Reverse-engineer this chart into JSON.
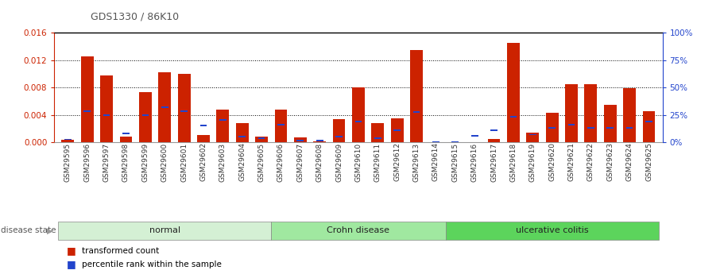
{
  "title": "GDS1330 / 86K10",
  "samples": [
    "GSM29595",
    "GSM29596",
    "GSM29597",
    "GSM29598",
    "GSM29599",
    "GSM29600",
    "GSM29601",
    "GSM29602",
    "GSM29603",
    "GSM29604",
    "GSM29605",
    "GSM29606",
    "GSM29607",
    "GSM29608",
    "GSM29609",
    "GSM29610",
    "GSM29611",
    "GSM29612",
    "GSM29613",
    "GSM29614",
    "GSM29615",
    "GSM29616",
    "GSM29617",
    "GSM29618",
    "GSM29619",
    "GSM29620",
    "GSM29621",
    "GSM29622",
    "GSM29623",
    "GSM29624",
    "GSM29625"
  ],
  "red_values": [
    0.00045,
    0.01255,
    0.00975,
    0.00085,
    0.0073,
    0.0102,
    0.01005,
    0.0011,
    0.0048,
    0.00285,
    0.00085,
    0.0048,
    0.00075,
    0.00015,
    0.00345,
    0.0081,
    0.00285,
    0.0035,
    0.0135,
    5e-05,
    5e-05,
    5e-05,
    0.0005,
    0.0145,
    0.0014,
    0.0043,
    0.0085,
    0.0085,
    0.0055,
    0.0079,
    0.0046
  ],
  "blue_values": [
    0.00045,
    0.00455,
    0.004,
    0.00135,
    0.004,
    0.00515,
    0.0046,
    0.0025,
    0.0033,
    0.00085,
    0.00065,
    0.00255,
    0.00025,
    0.00025,
    0.00085,
    0.0031,
    0.00065,
    0.00175,
    0.0045,
    5e-05,
    5e-05,
    0.00095,
    0.00175,
    0.0038,
    0.00115,
    0.00215,
    0.00255,
    0.0021,
    0.00215,
    0.0021,
    0.0031
  ],
  "groups": [
    {
      "label": "normal",
      "start": 0,
      "end": 11,
      "color": "#d4f0d4"
    },
    {
      "label": "Crohn disease",
      "start": 11,
      "end": 20,
      "color": "#a0e8a0"
    },
    {
      "label": "ulcerative colitis",
      "start": 20,
      "end": 31,
      "color": "#5cd45c"
    }
  ],
  "ylim_left": [
    0,
    0.016
  ],
  "ylim_right": [
    0,
    100
  ],
  "yticks_left": [
    0,
    0.004,
    0.008,
    0.012,
    0.016
  ],
  "yticks_right": [
    0,
    25,
    50,
    75,
    100
  ],
  "red_color": "#cc2200",
  "blue_color": "#2244cc",
  "bar_width": 0.65,
  "title_color": "#555555",
  "left_axis_color": "#cc2200",
  "right_axis_color": "#2244cc",
  "figsize": [
    9.11,
    3.45
  ],
  "dpi": 100
}
